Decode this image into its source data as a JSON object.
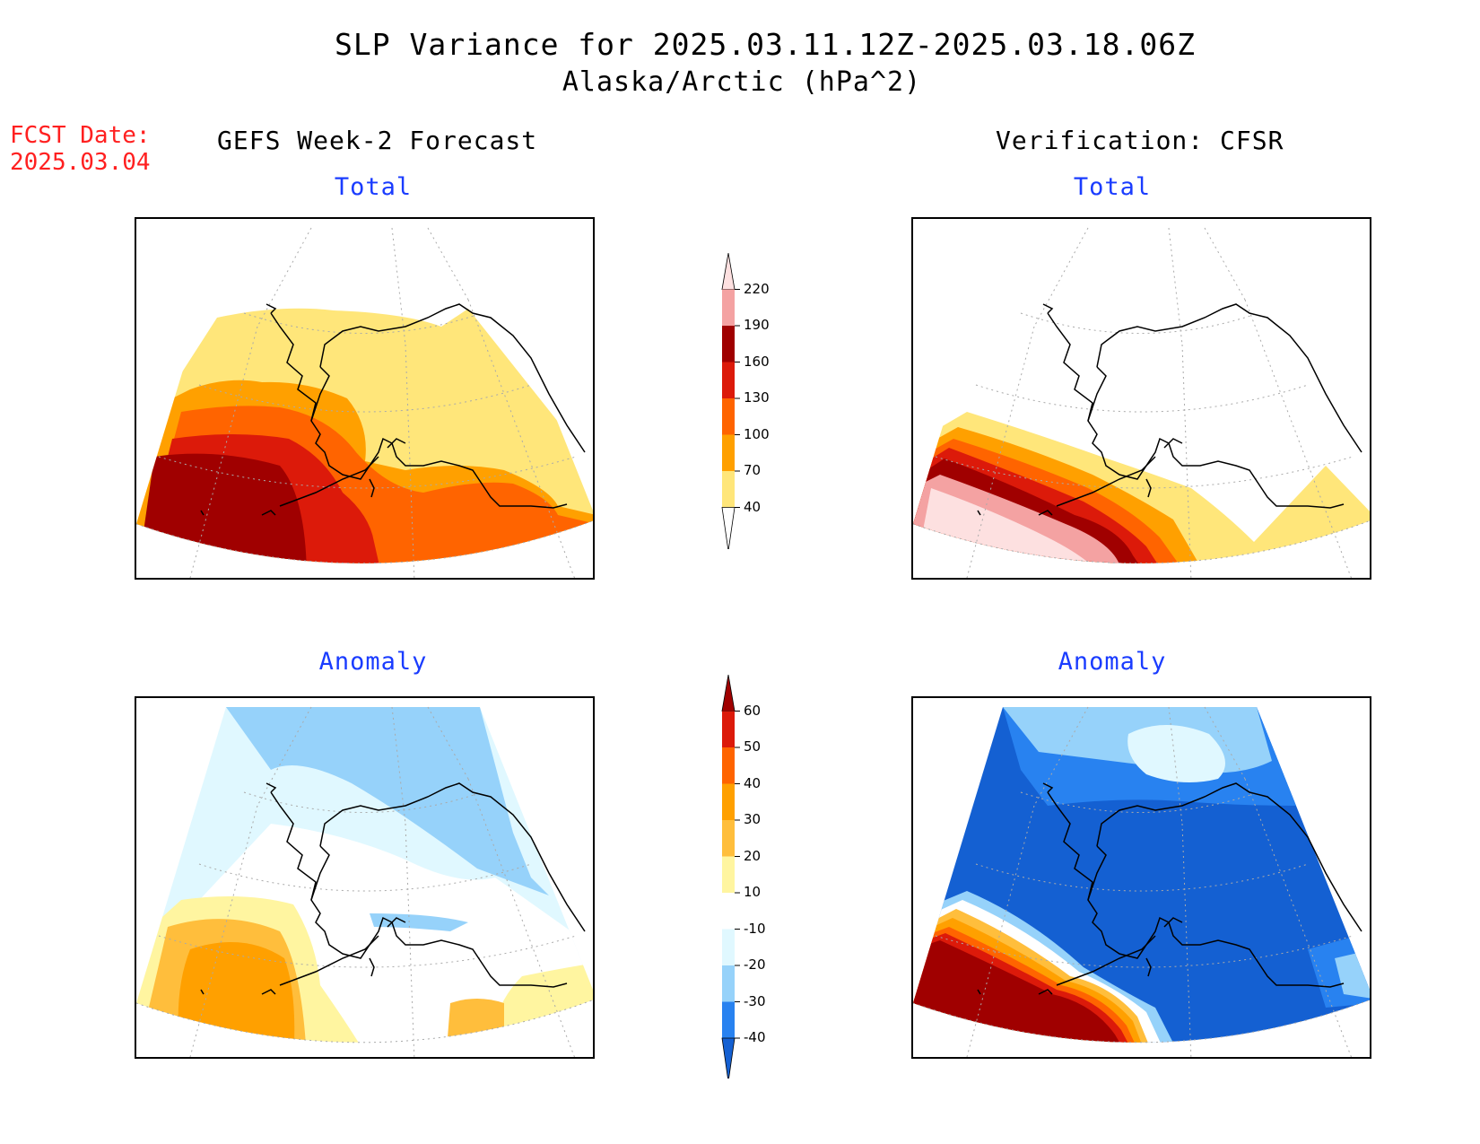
{
  "title": {
    "line1": "SLP Variance for 2025.03.11.12Z-2025.03.18.06Z",
    "line2": "Alaska/Arctic (hPa^2)"
  },
  "forecast_date": {
    "label": "FCST Date:",
    "value": "2025.03.04"
  },
  "columns": {
    "left": "GEFS Week-2 Forecast",
    "right": "Verification: CFSR"
  },
  "panels": {
    "gefs_total": {
      "title": "Total"
    },
    "cfsr_total": {
      "title": "Total"
    },
    "gefs_anomaly": {
      "title": "Anomaly"
    },
    "cfsr_anomaly": {
      "title": "Anomaly"
    }
  },
  "colorbar_total": {
    "labels": [
      "220",
      "190",
      "160",
      "130",
      "100",
      "70",
      "40"
    ],
    "colors": [
      "#fde0e0",
      "#f4a2a2",
      "#a00000",
      "#dc1a0a",
      "#ff6400",
      "#ffa000",
      "#ffe67a",
      "#ffffff"
    ]
  },
  "colorbar_anomaly": {
    "labels": [
      "60",
      "50",
      "40",
      "30",
      "20",
      "10",
      "-10",
      "-20",
      "-30",
      "-40"
    ],
    "colors": [
      "#a00000",
      "#dc1a0a",
      "#ff6400",
      "#ffa000",
      "#ffbe3c",
      "#fff5a0",
      "#ffffff",
      "#e0f8ff",
      "#96d2fa",
      "#2882f0",
      "#1460d2"
    ]
  },
  "chart_data": [
    {
      "type": "heatmap",
      "panel": "GEFS Week-2 Forecast — Total",
      "field": "SLP variance (hPa^2)",
      "levels": [
        40,
        70,
        100,
        130,
        160,
        190,
        220
      ]
    },
    {
      "type": "heatmap",
      "panel": "Verification: CFSR — Total",
      "field": "SLP variance (hPa^2)",
      "levels": [
        40,
        70,
        100,
        130,
        160,
        190,
        220
      ]
    },
    {
      "type": "heatmap",
      "panel": "GEFS Week-2 Forecast — Anomaly",
      "field": "SLP variance anomaly (hPa^2)",
      "levels": [
        -40,
        -30,
        -20,
        -10,
        10,
        20,
        30,
        40,
        50,
        60
      ]
    },
    {
      "type": "heatmap",
      "panel": "Verification: CFSR — Anomaly",
      "field": "SLP variance anomaly (hPa^2)",
      "levels": [
        -40,
        -30,
        -20,
        -10,
        10,
        20,
        30,
        40,
        50,
        60
      ]
    }
  ]
}
